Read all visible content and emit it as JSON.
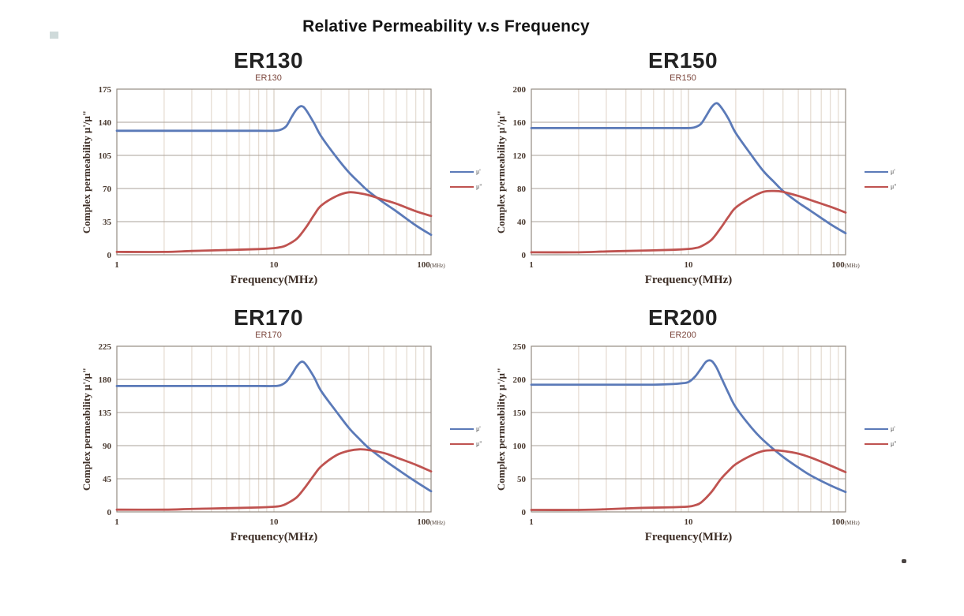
{
  "page_title": "Relative Permeability v.s Frequency",
  "colors": {
    "mu_prime": "#5b7ab8",
    "mu_double_prime": "#bf5350",
    "grid_vertical": "#ded3c7",
    "grid_vertical_major": "#cfc3b6",
    "grid_horizontal": "#aaa29a",
    "plot_border": "#948b83",
    "tick_text": "#4a3a30",
    "axis_label_text": "#3d2e26"
  },
  "chart_data": [
    {
      "type": "line",
      "title": "ER130",
      "subtitle": "ER130",
      "xlabel": "Frequency(MHz)",
      "ylabel": "Complex permeability  μ'/μ\"",
      "xscale": "log",
      "xlim": [
        1,
        100
      ],
      "ylim": [
        0,
        175
      ],
      "y_ticks": [
        0,
        35,
        70,
        105,
        140,
        175
      ],
      "x_ticks": [
        {
          "value": 1,
          "label": "1",
          "suffix": ""
        },
        {
          "value": 10,
          "label": "10",
          "suffix": ""
        },
        {
          "value": 100,
          "label": "100",
          "suffix": "(MHz)"
        }
      ],
      "grid": true,
      "legend_position": "right",
      "series": [
        {
          "name": "μ'",
          "color": "#5b7ab8",
          "points": [
            [
              1,
              131
            ],
            [
              1.5,
              131
            ],
            [
              2,
              131
            ],
            [
              3,
              131
            ],
            [
              4,
              131
            ],
            [
              5,
              131
            ],
            [
              6,
              131
            ],
            [
              8,
              131
            ],
            [
              10,
              131
            ],
            [
              11,
              132
            ],
            [
              12,
              136
            ],
            [
              13,
              146
            ],
            [
              14,
              154
            ],
            [
              15,
              157
            ],
            [
              16,
              153
            ],
            [
              18,
              139
            ],
            [
              20,
              125
            ],
            [
              25,
              103
            ],
            [
              30,
              87
            ],
            [
              35,
              76
            ],
            [
              40,
              67
            ],
            [
              50,
              55
            ],
            [
              60,
              46
            ],
            [
              80,
              31
            ],
            [
              100,
              21
            ]
          ]
        },
        {
          "name": "μ\"",
          "color": "#bf5350",
          "points": [
            [
              1,
              3
            ],
            [
              2,
              3
            ],
            [
              3,
              4
            ],
            [
              5,
              5
            ],
            [
              8,
              6
            ],
            [
              10,
              7
            ],
            [
              11,
              8
            ],
            [
              12,
              10
            ],
            [
              14,
              17
            ],
            [
              16,
              29
            ],
            [
              18,
              42
            ],
            [
              20,
              52
            ],
            [
              25,
              62
            ],
            [
              30,
              66
            ],
            [
              35,
              65
            ],
            [
              40,
              63
            ],
            [
              50,
              58
            ],
            [
              60,
              54
            ],
            [
              80,
              46
            ],
            [
              100,
              41
            ]
          ]
        }
      ]
    },
    {
      "type": "line",
      "title": "ER150",
      "subtitle": "ER150",
      "xlabel": "Frequency(MHz)",
      "ylabel": "Complex permeability  μ'/μ\"",
      "xscale": "log",
      "xlim": [
        1,
        100
      ],
      "ylim": [
        0,
        200
      ],
      "y_ticks": [
        0,
        40,
        80,
        120,
        160,
        200
      ],
      "x_ticks": [
        {
          "value": 1,
          "label": "1",
          "suffix": ""
        },
        {
          "value": 10,
          "label": "10",
          "suffix": ""
        },
        {
          "value": 100,
          "label": "100",
          "suffix": "(MHz)"
        }
      ],
      "grid": true,
      "legend_position": "right",
      "series": [
        {
          "name": "μ'",
          "color": "#5b7ab8",
          "points": [
            [
              1,
              153
            ],
            [
              2,
              153
            ],
            [
              3,
              153
            ],
            [
              4,
              153
            ],
            [
              5,
              153
            ],
            [
              6,
              153
            ],
            [
              8,
              153
            ],
            [
              10,
              153
            ],
            [
              11,
              154
            ],
            [
              12,
              158
            ],
            [
              13,
              168
            ],
            [
              14,
              178
            ],
            [
              15,
              183
            ],
            [
              16,
              179
            ],
            [
              18,
              164
            ],
            [
              20,
              147
            ],
            [
              25,
              121
            ],
            [
              30,
              101
            ],
            [
              35,
              88
            ],
            [
              40,
              77
            ],
            [
              50,
              63
            ],
            [
              60,
              53
            ],
            [
              80,
              37
            ],
            [
              100,
              26
            ]
          ]
        },
        {
          "name": "μ\"",
          "color": "#bf5350",
          "points": [
            [
              1,
              3
            ],
            [
              2,
              3
            ],
            [
              3,
              4
            ],
            [
              5,
              5
            ],
            [
              8,
              6
            ],
            [
              10,
              7
            ],
            [
              11,
              8
            ],
            [
              12,
              10
            ],
            [
              14,
              18
            ],
            [
              16,
              32
            ],
            [
              18,
              46
            ],
            [
              20,
              57
            ],
            [
              25,
              69
            ],
            [
              30,
              76
            ],
            [
              35,
              77
            ],
            [
              40,
              76
            ],
            [
              50,
              71
            ],
            [
              60,
              66
            ],
            [
              80,
              58
            ],
            [
              100,
              51
            ]
          ]
        }
      ]
    },
    {
      "type": "line",
      "title": "ER170",
      "subtitle": "ER170",
      "xlabel": "Frequency(MHz)",
      "ylabel": "Complex permeability  μ'/μ\"",
      "xscale": "log",
      "xlim": [
        1,
        100
      ],
      "ylim": [
        0,
        225
      ],
      "y_ticks": [
        0,
        45,
        90,
        135,
        180,
        225
      ],
      "x_ticks": [
        {
          "value": 1,
          "label": "1",
          "suffix": ""
        },
        {
          "value": 10,
          "label": "10",
          "suffix": ""
        },
        {
          "value": 100,
          "label": "100",
          "suffix": "(MHz)"
        }
      ],
      "grid": true,
      "legend_position": "right",
      "series": [
        {
          "name": "μ'",
          "color": "#5b7ab8",
          "points": [
            [
              1,
              171
            ],
            [
              2,
              171
            ],
            [
              3,
              171
            ],
            [
              4,
              171
            ],
            [
              5,
              171
            ],
            [
              6,
              171
            ],
            [
              8,
              171
            ],
            [
              10,
              171
            ],
            [
              11,
              172
            ],
            [
              12,
              177
            ],
            [
              13,
              187
            ],
            [
              14,
              198
            ],
            [
              15,
              204
            ],
            [
              16,
              200
            ],
            [
              18,
              183
            ],
            [
              20,
              164
            ],
            [
              25,
              136
            ],
            [
              30,
              114
            ],
            [
              35,
              99
            ],
            [
              40,
              87
            ],
            [
              50,
              71
            ],
            [
              60,
              59
            ],
            [
              80,
              41
            ],
            [
              100,
              28
            ]
          ]
        },
        {
          "name": "μ\"",
          "color": "#bf5350",
          "points": [
            [
              1,
              3
            ],
            [
              2,
              3
            ],
            [
              3,
              4
            ],
            [
              5,
              5
            ],
            [
              8,
              6
            ],
            [
              10,
              7
            ],
            [
              11,
              8
            ],
            [
              12,
              11
            ],
            [
              14,
              20
            ],
            [
              16,
              35
            ],
            [
              18,
              50
            ],
            [
              20,
              62
            ],
            [
              25,
              77
            ],
            [
              30,
              83
            ],
            [
              35,
              85
            ],
            [
              40,
              84
            ],
            [
              50,
              80
            ],
            [
              60,
              74
            ],
            [
              80,
              64
            ],
            [
              100,
              55
            ]
          ]
        }
      ]
    },
    {
      "type": "line",
      "title": "ER200",
      "subtitle": "ER200",
      "xlabel": "Frequency(MHz)",
      "ylabel": "Complex permeability  μ'/μ\"",
      "xscale": "log",
      "xlim": [
        1,
        100
      ],
      "ylim": [
        0,
        250
      ],
      "y_ticks": [
        0,
        50,
        100,
        150,
        200,
        250
      ],
      "x_ticks": [
        {
          "value": 1,
          "label": "1",
          "suffix": ""
        },
        {
          "value": 10,
          "label": "10",
          "suffix": ""
        },
        {
          "value": 100,
          "label": "100",
          "suffix": "(MHz)"
        }
      ],
      "grid": true,
      "legend_position": "right",
      "series": [
        {
          "name": "μ'",
          "color": "#5b7ab8",
          "points": [
            [
              1,
              192
            ],
            [
              2,
              192
            ],
            [
              3,
              192
            ],
            [
              4,
              192
            ],
            [
              5,
              192
            ],
            [
              6,
              192
            ],
            [
              8,
              193
            ],
            [
              9,
              194
            ],
            [
              10,
              196
            ],
            [
              11,
              204
            ],
            [
              12,
              216
            ],
            [
              13,
              227
            ],
            [
              14,
              228
            ],
            [
              15,
              219
            ],
            [
              16,
              205
            ],
            [
              18,
              179
            ],
            [
              20,
              158
            ],
            [
              25,
              128
            ],
            [
              30,
              108
            ],
            [
              40,
              83
            ],
            [
              50,
              67
            ],
            [
              60,
              55
            ],
            [
              80,
              40
            ],
            [
              100,
              30
            ]
          ]
        },
        {
          "name": "μ\"",
          "color": "#bf5350",
          "points": [
            [
              1,
              3
            ],
            [
              2,
              3
            ],
            [
              3,
              4
            ],
            [
              5,
              6
            ],
            [
              8,
              7
            ],
            [
              10,
              8
            ],
            [
              11,
              10
            ],
            [
              12,
              14
            ],
            [
              14,
              30
            ],
            [
              16,
              49
            ],
            [
              18,
              62
            ],
            [
              20,
              72
            ],
            [
              25,
              85
            ],
            [
              30,
              92
            ],
            [
              35,
              93
            ],
            [
              40,
              92
            ],
            [
              50,
              88
            ],
            [
              60,
              82
            ],
            [
              80,
              70
            ],
            [
              100,
              60
            ]
          ]
        }
      ]
    }
  ]
}
